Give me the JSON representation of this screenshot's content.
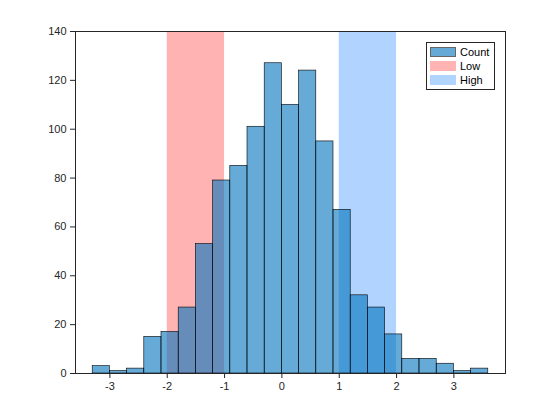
{
  "chart_data": {
    "type": "histogram",
    "bins": [
      -3.3,
      -3.0,
      -2.7,
      -2.4,
      -2.1,
      -1.8,
      -1.5,
      -1.2,
      -0.9,
      -0.6,
      -0.3,
      0,
      0.3,
      0.6,
      0.9,
      1.2,
      1.5,
      1.8,
      2.1,
      2.4,
      2.7,
      3.0,
      3.3,
      3.6
    ],
    "series": [
      {
        "name": "Count",
        "color": "#0072bd",
        "values": [
          3,
          1,
          2,
          15,
          17,
          27,
          53,
          79,
          85,
          101,
          127,
          110,
          124,
          95,
          67,
          32,
          27,
          16,
          6,
          6,
          4,
          1,
          2
        ]
      }
    ],
    "shaded_regions": [
      {
        "name": "Low",
        "x": [
          -2,
          -1
        ],
        "color": "#ffb3b3"
      },
      {
        "name": "High",
        "x": [
          1,
          2
        ],
        "color": "#b0d4ff"
      }
    ],
    "xlim": [
      -3.6,
      3.9
    ],
    "xticks": [
      -3,
      -2,
      -1,
      0,
      1,
      2,
      3
    ],
    "ylim": [
      0,
      140
    ],
    "yticks": [
      0,
      20,
      40,
      60,
      80,
      100,
      120,
      140
    ],
    "grid": false,
    "legend": "northeast"
  }
}
